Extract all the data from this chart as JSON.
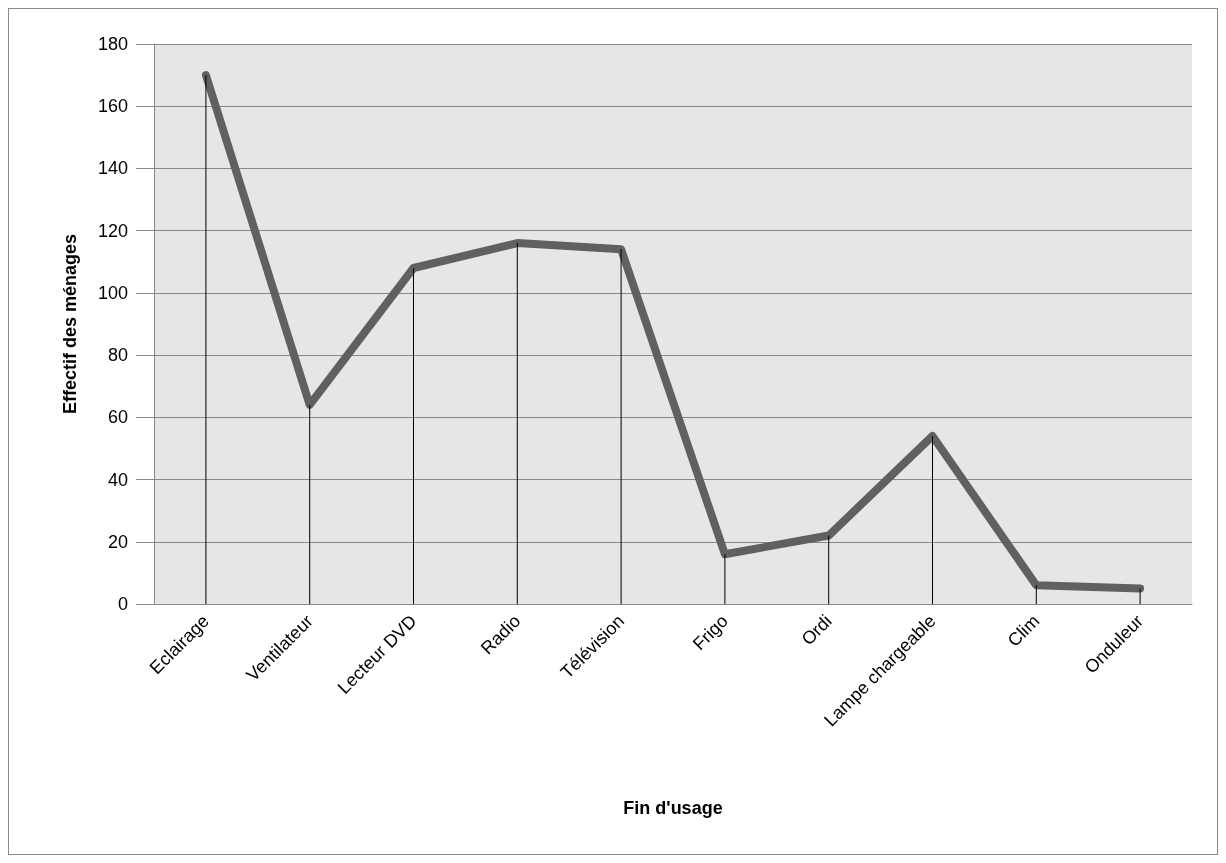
{
  "chart_data": {
    "type": "line",
    "xlabel": "Fin d'usage",
    "ylabel": "Effectif des ménages",
    "categories": [
      "Eclairage",
      "Ventilateur",
      "Lecteur DVD",
      "Radio",
      "Télévision",
      "Frigo",
      "Ordi",
      "Lampe chargeable",
      "Clim",
      "Onduleur"
    ],
    "series": [
      {
        "type": "bar",
        "color": "#000000",
        "values": [
          170,
          64,
          108,
          116,
          114,
          16,
          22,
          54,
          6,
          5
        ]
      },
      {
        "color": "#606060",
        "values": [
          170,
          64,
          108,
          116,
          114,
          16,
          22,
          54,
          6,
          5
        ]
      }
    ],
    "ylim": [
      0,
      180
    ],
    "yticks": [
      0,
      20,
      40,
      60,
      80,
      100,
      120,
      140,
      160,
      180
    ],
    "grid": "y",
    "marker": "none",
    "line_style": "solid"
  }
}
